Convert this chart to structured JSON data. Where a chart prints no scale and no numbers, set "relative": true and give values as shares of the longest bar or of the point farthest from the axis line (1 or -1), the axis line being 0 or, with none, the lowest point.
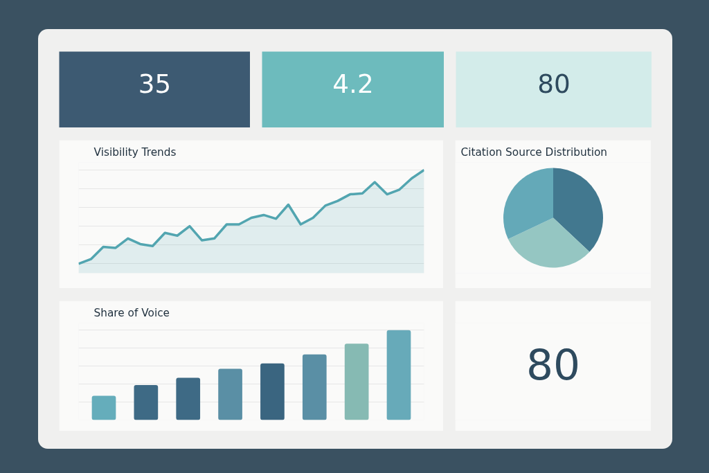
{
  "chart_data": [
    {
      "type": "other",
      "annotations": [
        "35"
      ],
      "color": "#3d5a72"
    },
    {
      "type": "other",
      "annotations": [
        "4.2"
      ],
      "color": "#6dbbbd"
    },
    {
      "type": "other",
      "annotations": [
        "80"
      ],
      "color": "#d3ecea"
    },
    {
      "type": "area",
      "title": "Visibility Trends",
      "relative": true,
      "grid": "y",
      "categories": [
        null,
        null,
        null,
        null,
        null,
        null,
        null,
        null,
        null,
        null,
        null,
        null,
        null,
        null,
        null,
        null,
        null,
        null,
        null,
        null,
        null,
        null,
        null,
        null,
        null,
        null,
        null,
        null,
        null
      ],
      "series": [
        {
          "color": "#52a5b0",
          "values": [
            0,
            0.05,
            0.18,
            0.17,
            0.27,
            0.21,
            0.19,
            0.33,
            0.3,
            0.4,
            0.25,
            0.27,
            0.42,
            0.42,
            0.49,
            0.52,
            0.48,
            0.63,
            0.42,
            0.49,
            0.62,
            0.67,
            0.74,
            0.75,
            0.87,
            0.74,
            0.79,
            0.91,
            1
          ]
        }
      ]
    },
    {
      "type": "pie",
      "title": "Citation Source Distribution",
      "categories": [
        null,
        null,
        null
      ],
      "values": [
        37,
        31,
        32
      ],
      "colors": [
        "#42788f",
        "#95c6c2",
        "#64a9b8"
      ]
    },
    {
      "type": "bar",
      "title": "Share of Voice",
      "relative": true,
      "grid": "y",
      "categories": [
        null,
        null,
        null,
        null,
        null,
        null,
        null,
        null
      ],
      "values": [
        0.27,
        0.39,
        0.47,
        0.57,
        0.63,
        0.73,
        0.85,
        1
      ],
      "colors": [
        "#65adbb",
        "#3e6a85",
        "#3e6a85",
        "#5a8fa5",
        "#3a6580",
        "#5a8fa5",
        "#86bab3",
        "#67aab9"
      ]
    },
    {
      "type": "other",
      "annotations": [
        "80"
      ]
    }
  ]
}
